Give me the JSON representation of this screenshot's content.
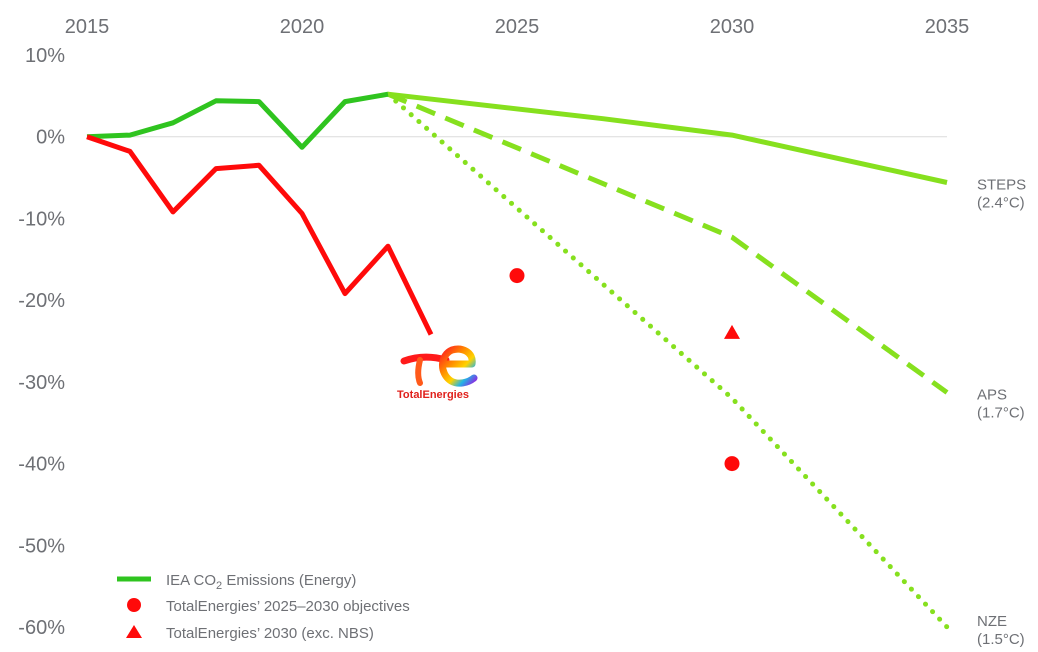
{
  "chart_data": {
    "type": "line",
    "x_ticks": [
      "2015",
      "2020",
      "2025",
      "2030",
      "2035"
    ],
    "y_ticks": [
      "10%",
      "0%",
      "-10%",
      "-20%",
      "-30%",
      "-40%",
      "-50%",
      "-60%"
    ],
    "xlim": [
      2015,
      2035
    ],
    "ylim": [
      -60,
      10
    ],
    "grid": "zero line only",
    "legend_position": "bottom-left",
    "series": [
      {
        "key": "totalenergies_actual",
        "style": "solid",
        "color": "#ff0a0a",
        "x": [
          2015,
          2016,
          2017,
          2018,
          2019,
          2020,
          2021,
          2022,
          2023
        ],
        "y": [
          0,
          -1.8,
          -9.2,
          -3.9,
          -3.5,
          -9.4,
          -19.2,
          -13.4,
          -24.2
        ]
      },
      {
        "key": "iea_historical",
        "style": "solid",
        "color": "#2fc41f",
        "x": [
          2015,
          2016,
          2017,
          2018,
          2019,
          2020,
          2021,
          2022
        ],
        "y": [
          0,
          0.2,
          1.7,
          4.4,
          4.3,
          -1.3,
          4.3,
          5.2
        ]
      },
      {
        "key": "steps",
        "style": "solid",
        "color": "#86e01e",
        "x": [
          2022,
          2027,
          2030,
          2035
        ],
        "y": [
          5.2,
          2.2,
          0.2,
          -5.6
        ]
      },
      {
        "key": "aps",
        "style": "dashed",
        "color": "#86e01e",
        "x": [
          2022,
          2030,
          2035
        ],
        "y": [
          5.2,
          -12.3,
          -31.3
        ]
      },
      {
        "key": "nze",
        "style": "dotted",
        "color": "#86e01e",
        "x": [
          2022,
          2030,
          2035
        ],
        "y": [
          5.2,
          -32.0,
          -60.0
        ]
      }
    ],
    "points": [
      {
        "key": "objective_2025",
        "marker": "circle",
        "color": "#ff0a0a",
        "x": 2025,
        "y": -17
      },
      {
        "key": "objective_2030",
        "marker": "circle",
        "color": "#ff0a0a",
        "x": 2030,
        "y": -40
      },
      {
        "key": "objective_2030_exc_nbs",
        "marker": "triangle",
        "color": "#ff0a0a",
        "x": 2030,
        "y": -24
      }
    ],
    "scenario_labels": [
      {
        "key": "steps",
        "line1": "STEPS",
        "line2": "(2.4°C)"
      },
      {
        "key": "aps",
        "line1": "APS",
        "line2": "(1.7°C)"
      },
      {
        "key": "nze",
        "line1": "NZE",
        "line2": "(1.5°C)"
      }
    ],
    "legend": [
      {
        "marker": "line",
        "color": "#2fc41f",
        "text_before": "IEA CO",
        "subscript": "2",
        "text_after": " Emissions (Energy)"
      },
      {
        "marker": "circle",
        "color": "#ff0a0a",
        "text": "TotalEnergies’ 2025–2030 objectives"
      },
      {
        "marker": "triangle",
        "color": "#ff0a0a",
        "text": "TotalEnergies’ 2030 (exc. NBS)"
      }
    ],
    "logo": {
      "text": "TotalEnergies"
    }
  }
}
